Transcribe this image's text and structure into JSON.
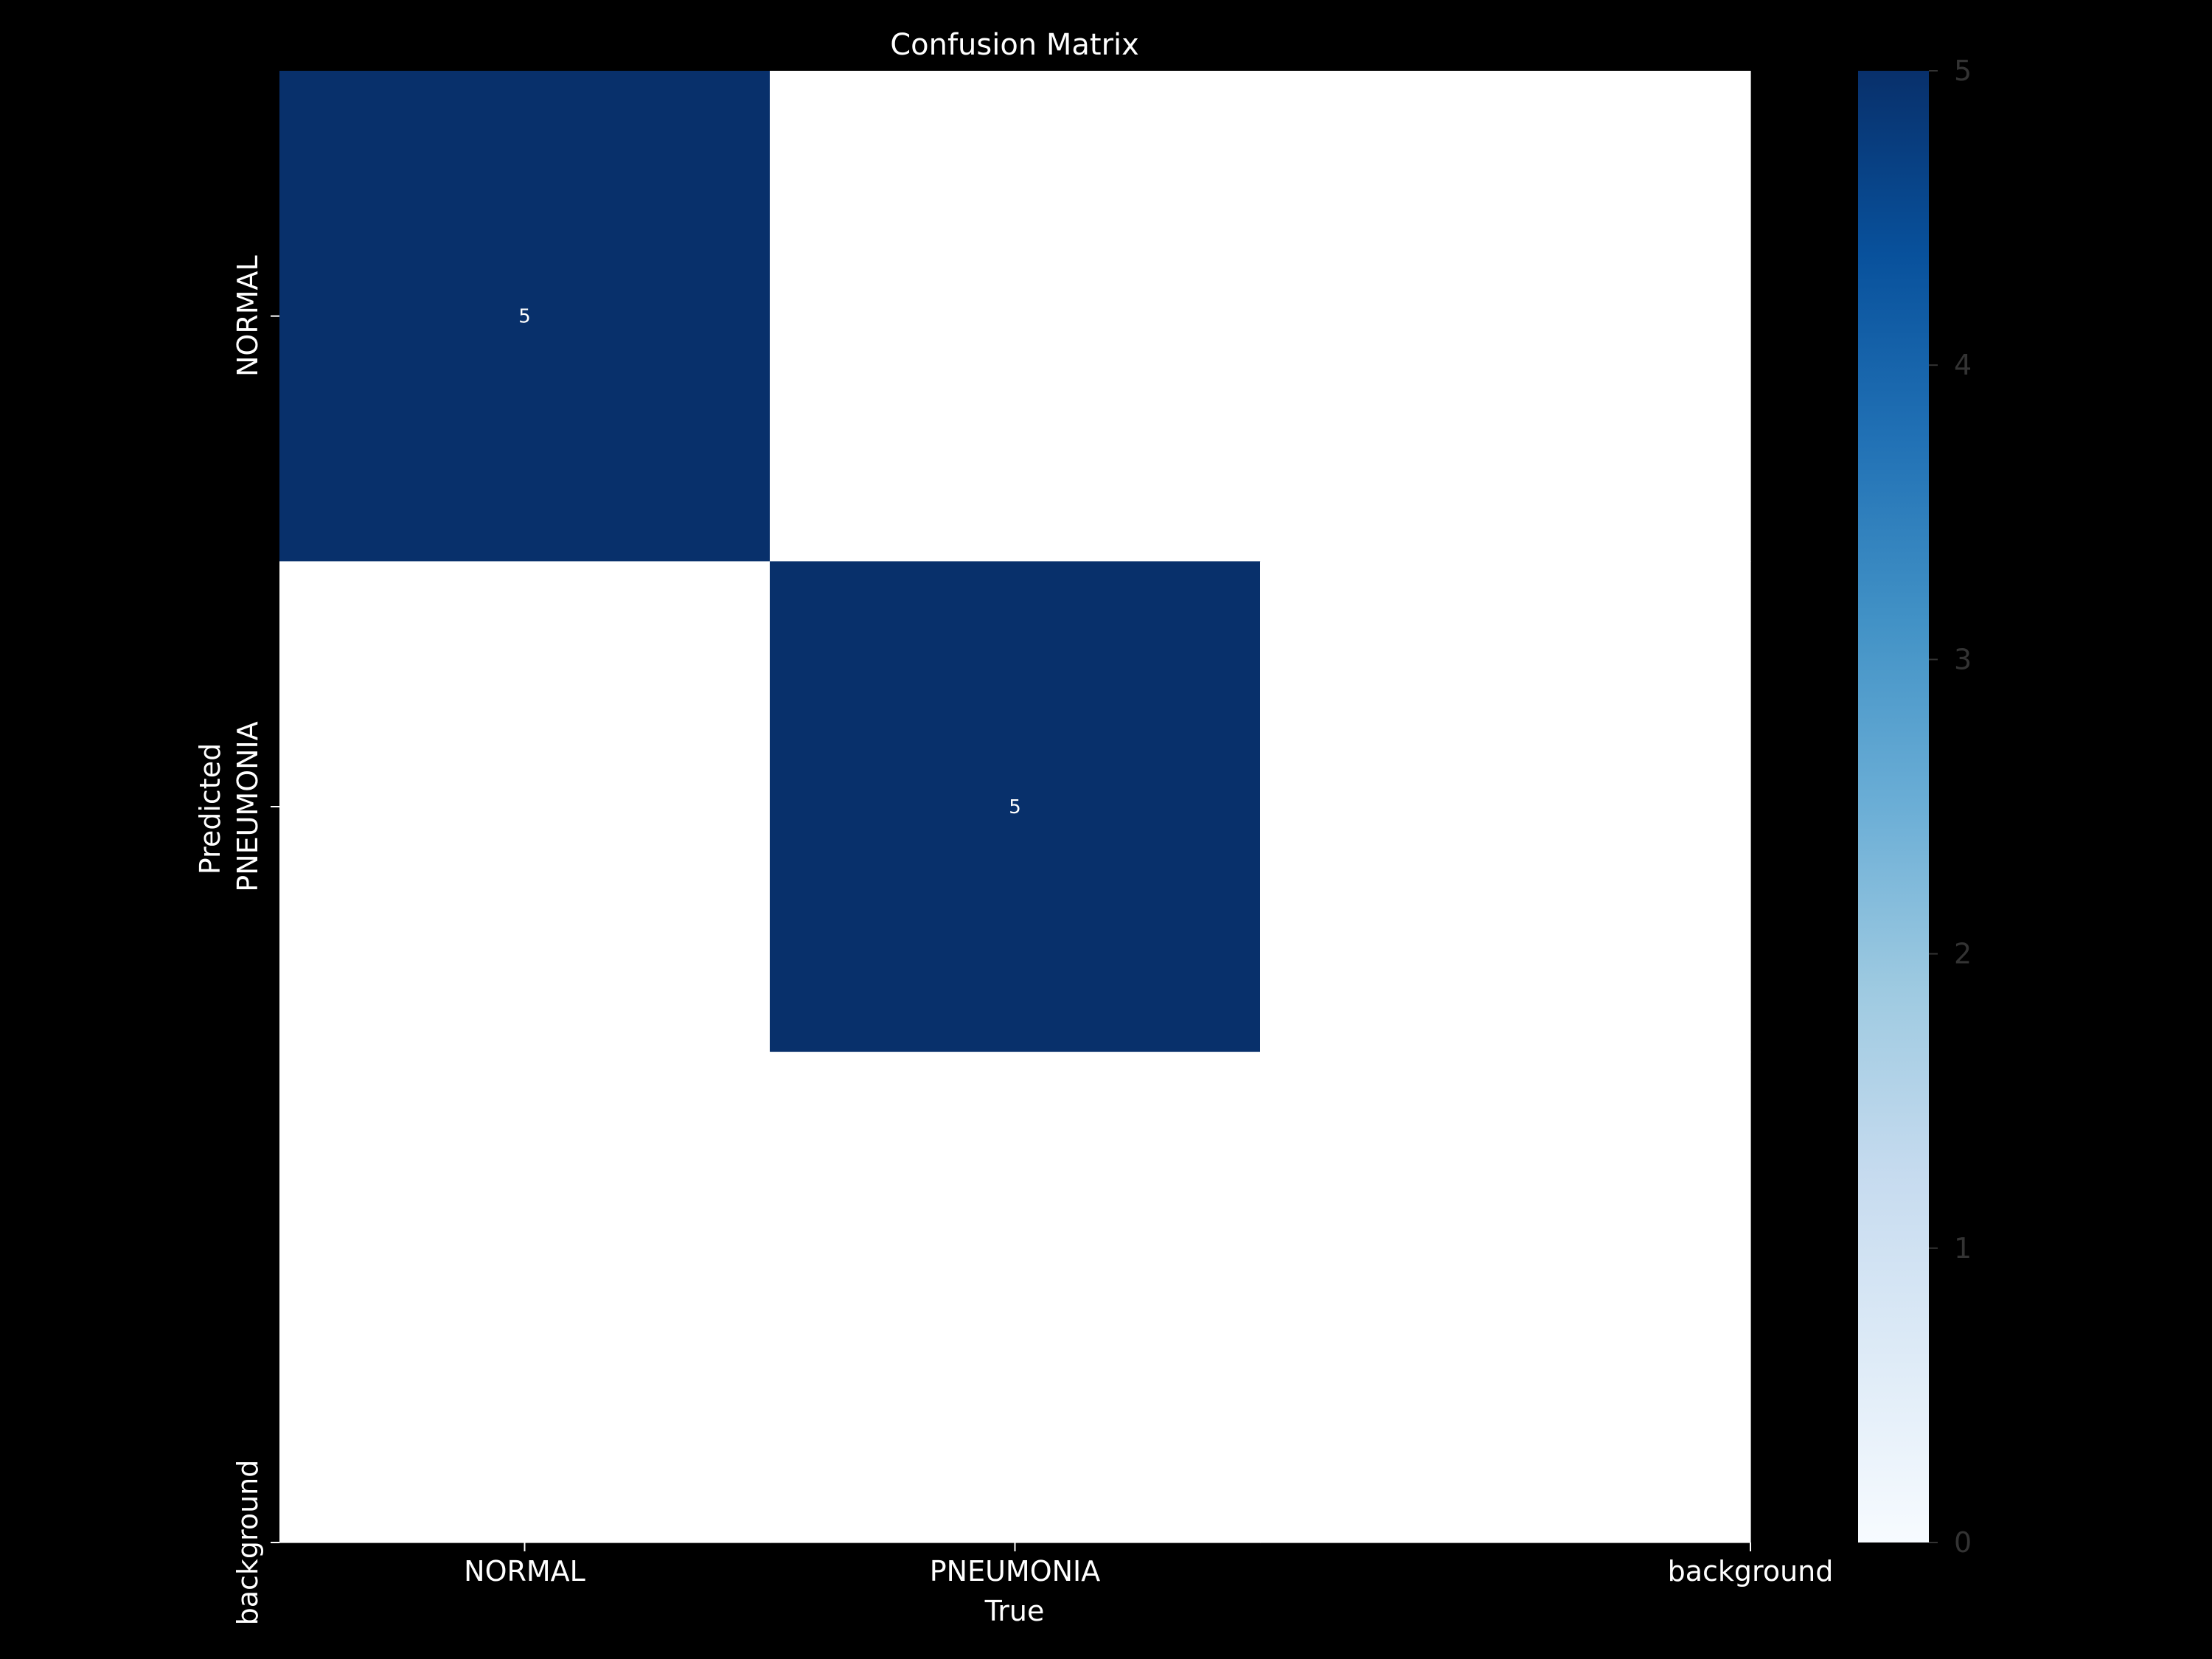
{
  "chart_data": {
    "type": "heatmap",
    "title": "Confusion Matrix",
    "xlabel": "True",
    "ylabel": "Predicted",
    "x_categories": [
      "NORMAL",
      "PNEUMONIA",
      "background"
    ],
    "y_categories": [
      "NORMAL",
      "PNEUMONIA",
      "background"
    ],
    "values": [
      [
        5,
        0,
        null
      ],
      [
        0,
        5,
        null
      ],
      [
        null,
        null,
        null
      ]
    ],
    "cell_labels": [
      [
        "5",
        "",
        ""
      ],
      [
        "",
        "5",
        ""
      ],
      [
        "",
        "",
        ""
      ]
    ],
    "colorbar": {
      "range": [
        0,
        5
      ],
      "ticks": [
        "0",
        "1",
        "2",
        "3",
        "4",
        "5"
      ],
      "colormap": "Blues",
      "stops": [
        "#f7fbff",
        "#deebf7",
        "#c6dbef",
        "#9ecae1",
        "#6baed6",
        "#4292c6",
        "#2171b5",
        "#08519c",
        "#08306b"
      ]
    },
    "colors": {
      "background": "#000000",
      "text": "#ffffff",
      "colorbar_tick_text": "#333333",
      "empty_cell": "#ffffff"
    }
  }
}
